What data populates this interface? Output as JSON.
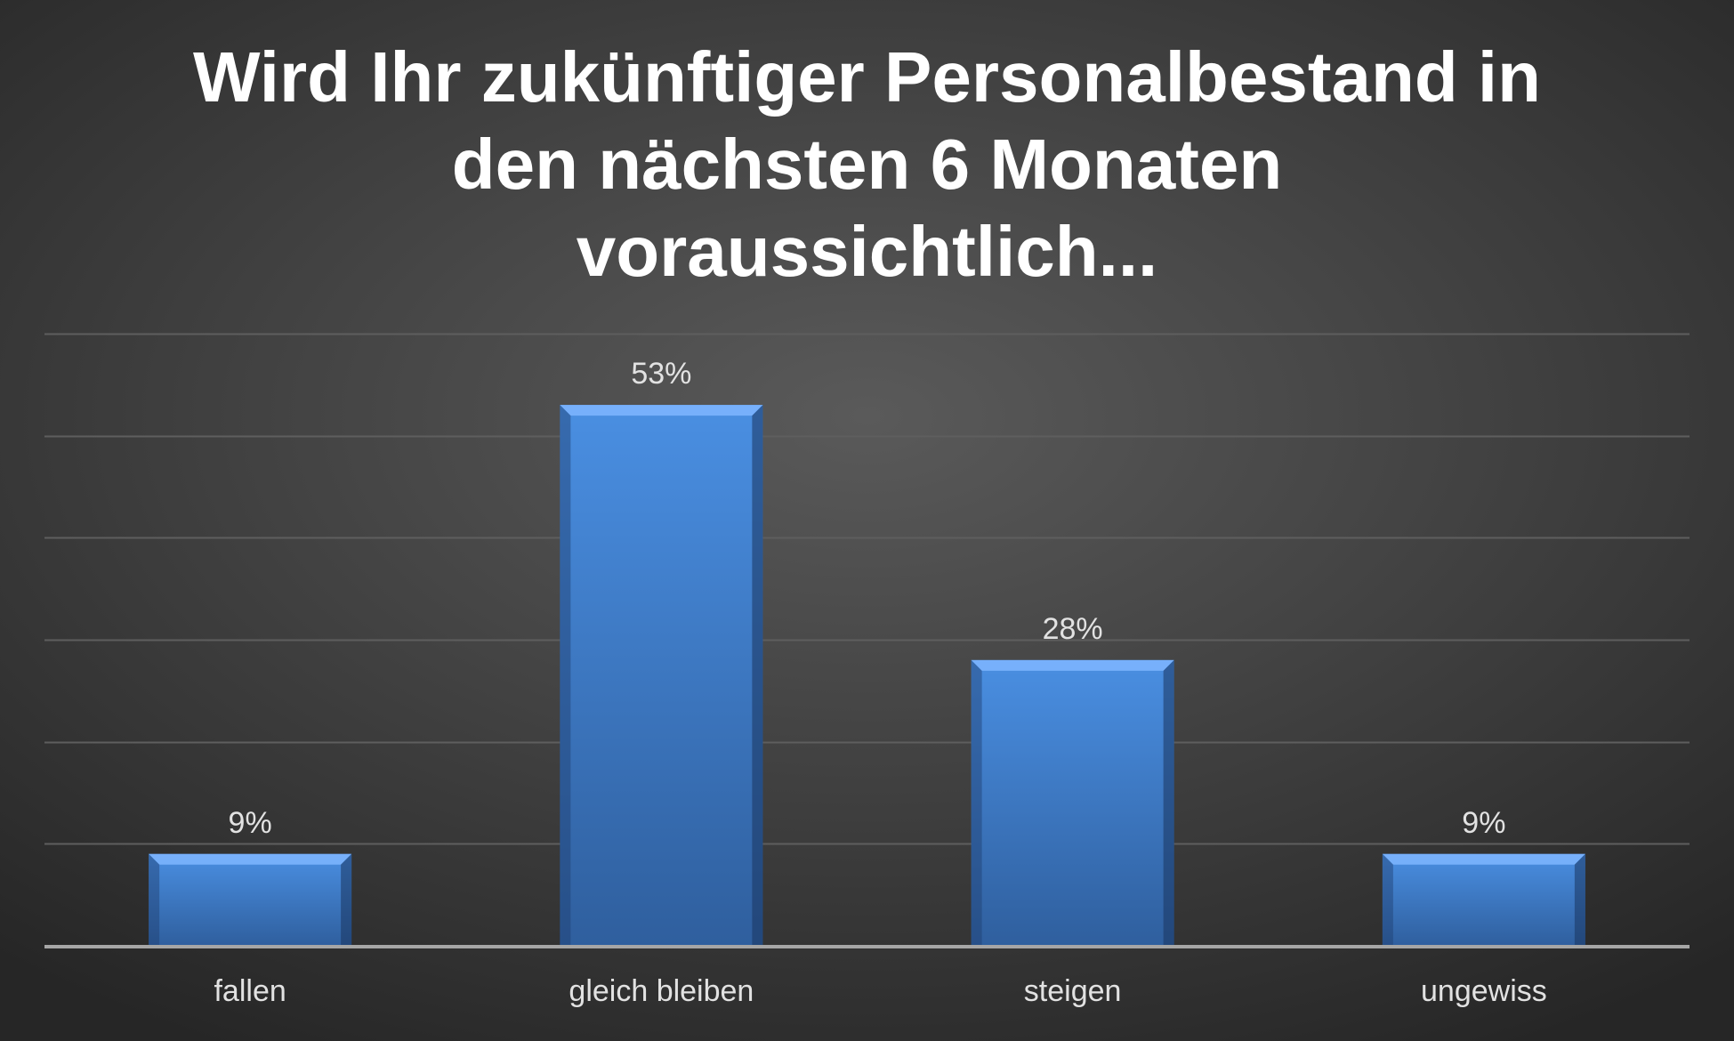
{
  "chart_data": {
    "type": "bar",
    "title_lines": [
      "Wird Ihr zukünftiger Personalbestand in",
      "den nächsten 6 Monaten",
      "voraussichtlich..."
    ],
    "categories": [
      "fallen",
      "gleich bleiben",
      "steigen",
      "ungewiss"
    ],
    "values": [
      9,
      53,
      28,
      9
    ],
    "data_labels": [
      "9%",
      "53%",
      "28%",
      "9%"
    ],
    "value_unit": "%",
    "ylim": [
      0,
      60
    ],
    "y_gridline_step": 10,
    "y_axis_visible": false,
    "grid": true,
    "legend": "none",
    "colors": {
      "bar_top": "#4a8fe2",
      "bar_bottom": "#2f5f9e",
      "bar_bevel": "#7fb6ff",
      "gridline": "#5e5e5e",
      "axis": "#a6a6a6",
      "label": "#e2e2e2",
      "title": "#ffffff"
    }
  }
}
